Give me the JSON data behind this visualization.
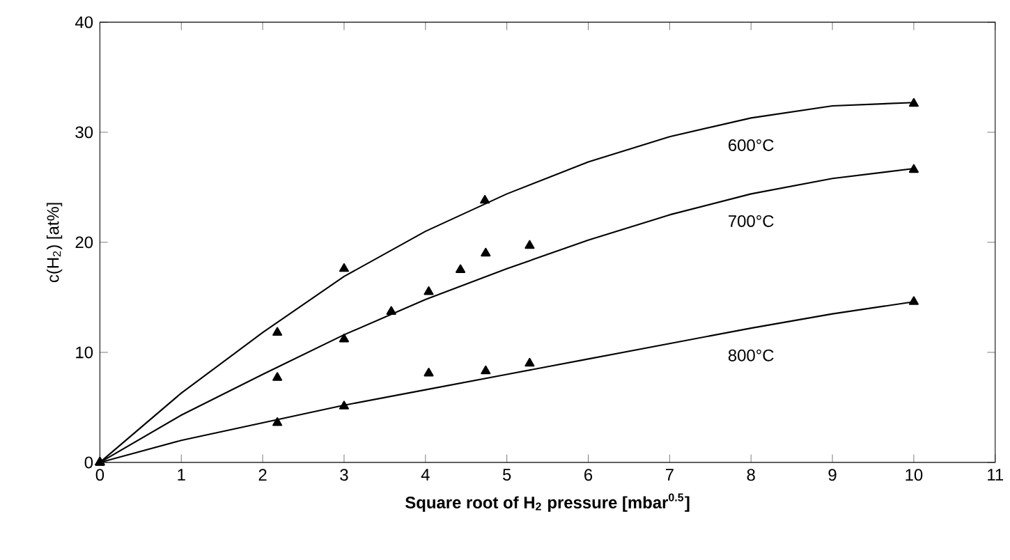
{
  "chart_data": {
    "type": "scatter",
    "xlabel": "Square root of  H$_{2}$ pressure [mbar$^{0.5}$]",
    "ylabel": "c(H$_{2}$) [at%]",
    "xlim": [
      0,
      11
    ],
    "xticks": [
      0,
      1,
      2,
      3,
      4,
      5,
      6,
      7,
      8,
      9,
      10,
      11
    ],
    "ylim": [
      0,
      40
    ],
    "yticks": [
      0,
      10,
      20,
      30,
      40
    ],
    "marker": "triangle",
    "grid": false,
    "series": [
      {
        "color": "#000000",
        "x": [
          0,
          2.18,
          3.0,
          4.73,
          10
        ],
        "values": [
          0,
          11.8,
          17.6,
          23.8,
          32.6
        ]
      },
      {
        "color": "#000000",
        "x": [
          0,
          2.18,
          3.0,
          3.58,
          4.04,
          4.43,
          4.74,
          5.28,
          10
        ],
        "values": [
          0,
          7.7,
          11.2,
          13.7,
          15.5,
          17.5,
          19.0,
          19.7,
          26.6
        ]
      },
      {
        "color": "#000000",
        "x": [
          0,
          2.18,
          3.0,
          4.04,
          4.74,
          5.28,
          10
        ],
        "values": [
          0,
          3.6,
          5.1,
          8.1,
          8.3,
          9.0,
          14.6
        ]
      },
      {
        "type": "line",
        "name": "600°C",
        "color": "#000000",
        "marker": "none",
        "x": [
          0,
          1,
          2,
          3,
          4,
          5,
          6,
          7,
          8,
          9,
          10
        ],
        "values": [
          0,
          6.3,
          11.8,
          16.9,
          21,
          24.4,
          27.3,
          29.6,
          31.3,
          32.4,
          32.7
        ]
      },
      {
        "type": "line",
        "name": "700°C",
        "color": "#000000",
        "marker": "none",
        "x": [
          0,
          1,
          2,
          3,
          4,
          5,
          6,
          7,
          8,
          9,
          10
        ],
        "values": [
          0,
          4.3,
          8,
          11.6,
          14.8,
          17.6,
          20.2,
          22.5,
          24.4,
          25.8,
          26.7
        ]
      },
      {
        "type": "line",
        "name": "800°C",
        "color": "#000000",
        "marker": "none",
        "x": [
          0,
          1,
          2,
          3,
          4,
          5,
          6,
          7,
          8,
          9,
          10
        ],
        "values": [
          0,
          2,
          3.6,
          5.2,
          6.6,
          8,
          9.4,
          10.8,
          12.2,
          13.5,
          14.6
        ]
      }
    ]
  }
}
